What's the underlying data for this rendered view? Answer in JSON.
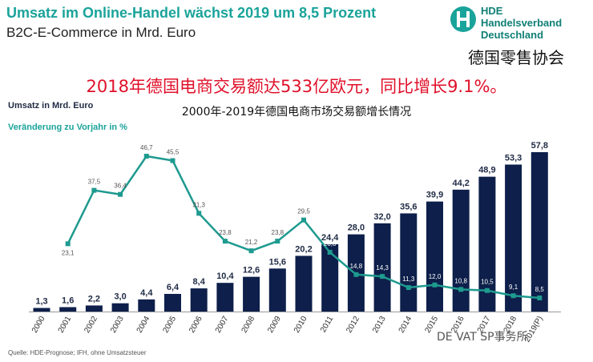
{
  "header": {
    "title": "Umsatz im Online-Handel wächst 2019 um 8,5 Prozent",
    "subtitle": "B2C-E-Commerce in Mrd. Euro",
    "logo_lines": [
      "HDE",
      "Handelsverband",
      "Deutschland"
    ],
    "logo_cn": "德国零售协会",
    "headline_cn": "2018年德国电商交易额达533亿欧元，同比增长9.1%。"
  },
  "legend": {
    "bar_series": "Umsatz in Mrd. Euro",
    "line_series": "Veränderung zu Vorjahr in %"
  },
  "chart_title_cn": "2000年-2019年德国电商市场交易额增长情况",
  "footer": {
    "source": "Quelle: HDE-Prognose;  IFH, ohne Umsatzsteuer",
    "watermark": "DE VAT SP事务所"
  },
  "colors": {
    "bar": "#0d1f4a",
    "line": "#1e9a8f",
    "title": "#1aa39a",
    "headline": "#e0102a"
  },
  "chart_data": {
    "type": "bar",
    "categories": [
      "2000",
      "2001",
      "2002",
      "2003",
      "2004",
      "2005",
      "2006",
      "2007",
      "2008",
      "2009",
      "2010",
      "2011",
      "2012",
      "2013",
      "2014",
      "2015",
      "2016",
      "2017",
      "2018",
      "2019(P)"
    ],
    "series": [
      {
        "name": "Umsatz in Mrd. Euro",
        "type": "bar",
        "values": [
          1.3,
          1.6,
          2.2,
          3.0,
          4.4,
          6.4,
          8.4,
          10.4,
          12.6,
          15.6,
          20.2,
          24.4,
          28.0,
          32.0,
          35.6,
          39.9,
          44.2,
          48.9,
          53.3,
          57.8
        ],
        "labels": [
          "1,3",
          "1,6",
          "2,2",
          "3,0",
          "4,4",
          "6,4",
          "8,4",
          "10,4",
          "12,6",
          "15,6",
          "20,2",
          "24,4",
          "28,0",
          "32,0",
          "35,6",
          "39,9",
          "44,2",
          "48,9",
          "53,3",
          "57,8"
        ]
      },
      {
        "name": "Veränderung zu Vorjahr in %",
        "type": "line",
        "values": [
          null,
          23.1,
          37.5,
          36.4,
          46.7,
          45.5,
          31.3,
          23.8,
          21.2,
          23.8,
          29.5,
          20.8,
          14.8,
          14.3,
          11.3,
          12.0,
          10.8,
          10.5,
          9.1,
          8.5
        ],
        "labels": [
          "",
          "23,1",
          "37,5",
          "36,4",
          "46,7",
          "45,5",
          "31,3",
          "23,8",
          "21,2",
          "23,8",
          "29,5",
          "20,8",
          "14,8",
          "14,3",
          "11,3",
          "12,0",
          "10,8",
          "10,5",
          "9,1",
          "8,5"
        ]
      }
    ],
    "bar_ylim": [
      0,
      57.8
    ],
    "line_ylim": [
      8.5,
      46.7
    ],
    "grid": false
  }
}
